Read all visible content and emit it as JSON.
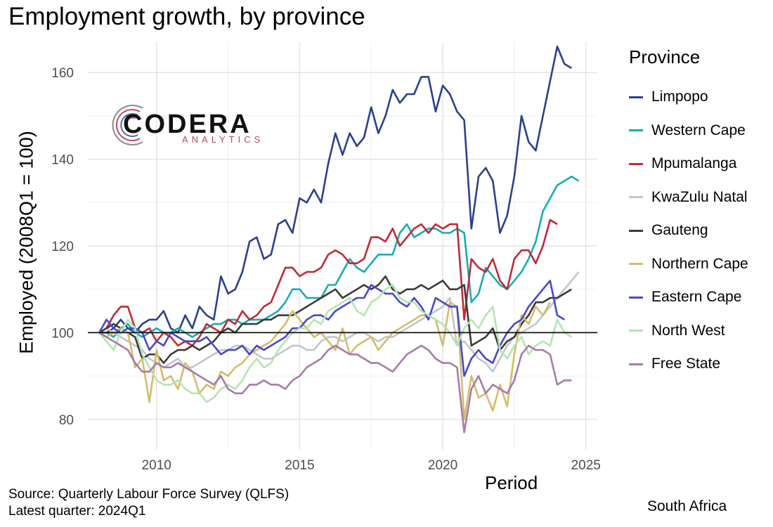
{
  "header": {
    "title": "Employment growth, by province"
  },
  "logo": {
    "main": "CODERA",
    "sub": "ANALYTICS",
    "icon": "codera-logo-icon"
  },
  "footer": {
    "source": "Source: Quarterly Labour Force Survey (QLFS)",
    "latest": "Latest quarter: 2024Q1",
    "country": "South Africa"
  },
  "legend": {
    "title": "Province",
    "placement": "right"
  },
  "chart_data": {
    "type": "line",
    "title": "Employment growth, by province",
    "xlabel": "Period",
    "ylabel": "Employed (2008Q1 = 100)",
    "xlim": [
      2007.6,
      2025.4
    ],
    "ylim": [
      73,
      167
    ],
    "xticks": [
      2010,
      2015,
      2020,
      2025
    ],
    "yticks": [
      80,
      100,
      120,
      140,
      160
    ],
    "reference_line": 100,
    "grid": true,
    "x_start": 2008.0,
    "x_step": 0.25,
    "series": [
      {
        "name": "Limpopo",
        "color": "#2a3f8f",
        "values": [
          100,
          100,
          101,
          103,
          101,
          100,
          102,
          103,
          103,
          105,
          101,
          100,
          104,
          101,
          106,
          104,
          103,
          113,
          109,
          110,
          114,
          121,
          122,
          117,
          118,
          125,
          126,
          123,
          131,
          130,
          133,
          130,
          139,
          146,
          141,
          146,
          143,
          145,
          152,
          146,
          150,
          156,
          153,
          155,
          155,
          159,
          159,
          151,
          157,
          155,
          151,
          149,
          124,
          136,
          138,
          135,
          123,
          127,
          136,
          150,
          144,
          142,
          150,
          158,
          166,
          162,
          161
        ]
      },
      {
        "name": "Western Cape",
        "color": "#17adb0",
        "values": [
          100,
          100,
          99,
          101,
          102,
          100,
          99,
          100,
          101,
          100,
          100,
          101,
          100,
          99,
          100,
          101,
          102,
          102,
          103,
          103,
          102,
          103,
          103,
          103,
          104,
          105,
          107,
          110,
          110,
          108,
          108,
          108,
          111,
          111,
          114,
          117,
          115,
          114,
          116,
          118,
          118,
          118,
          123,
          125,
          122,
          123,
          124,
          124,
          123,
          123,
          124,
          123,
          107,
          109,
          115,
          113,
          111,
          110,
          112,
          114,
          117,
          121,
          128,
          131,
          134,
          135,
          136,
          135
        ]
      },
      {
        "name": "Mpumalanga",
        "color": "#bf2a36",
        "values": [
          100,
          101,
          104,
          106,
          106,
          101,
          100,
          101,
          98,
          100,
          99,
          97,
          98,
          97,
          99,
          102,
          101,
          100,
          103,
          102,
          105,
          103,
          104,
          106,
          107,
          111,
          115,
          115,
          113,
          114,
          114,
          115,
          118,
          119,
          118,
          116,
          116,
          117,
          122,
          122,
          121,
          124,
          120,
          122,
          124,
          125,
          123,
          125,
          124,
          125,
          125,
          103,
          117,
          115,
          114,
          117,
          112,
          110,
          117,
          119,
          119,
          116,
          120,
          126,
          125
        ]
      },
      {
        "name": "KwaZulu Natal",
        "color": "#c2c5cc",
        "values": [
          100,
          101,
          100,
          99,
          98,
          97,
          96,
          94,
          93,
          92,
          93,
          94,
          92,
          92,
          93,
          94,
          95,
          96,
          96,
          97,
          97,
          96,
          95,
          94,
          94,
          95,
          96,
          97,
          97,
          96,
          96,
          98,
          99,
          99,
          98,
          99,
          100,
          100,
          99,
          98,
          99,
          99,
          100,
          101,
          102,
          103,
          104,
          105,
          106,
          108,
          97,
          98,
          96,
          94,
          93,
          91,
          94,
          97,
          99,
          100,
          101,
          102,
          104,
          106,
          108,
          110,
          112,
          114
        ]
      },
      {
        "name": "Gauteng",
        "color": "#3a3a3a",
        "values": [
          100,
          101,
          102,
          101,
          100,
          99,
          94,
          95,
          95,
          93,
          95,
          96,
          96,
          97,
          96,
          97,
          98,
          100,
          101,
          100,
          102,
          102,
          102,
          103,
          103,
          104,
          104,
          104,
          105,
          106,
          107,
          108,
          109,
          110,
          108,
          109,
          110,
          111,
          110,
          111,
          113,
          110,
          109,
          110,
          110,
          111,
          110,
          111,
          112,
          110,
          110,
          111,
          97,
          98,
          99,
          101,
          96,
          98,
          99,
          102,
          104,
          107,
          107,
          108,
          108,
          109,
          110
        ]
      },
      {
        "name": "Northern Cape",
        "color": "#d4bc6c",
        "values": [
          100,
          99,
          100,
          101,
          100,
          92,
          94,
          84,
          96,
          89,
          90,
          87,
          93,
          91,
          86,
          88,
          87,
          91,
          90,
          92,
          93,
          95,
          96,
          97,
          98,
          100,
          102,
          105,
          103,
          101,
          99,
          100,
          98,
          96,
          101,
          95,
          97,
          98,
          99,
          96,
          98,
          100,
          101,
          102,
          103,
          104,
          104,
          103,
          97,
          107,
          106,
          80,
          90,
          85,
          86,
          82,
          88,
          83,
          95,
          104,
          102,
          106,
          104,
          107
        ]
      },
      {
        "name": "Eastern Cape",
        "color": "#4848c8",
        "values": [
          100,
          103,
          101,
          100,
          101,
          101,
          100,
          96,
          98,
          97,
          100,
          99,
          98,
          98,
          98,
          99,
          97,
          95,
          96,
          96,
          97,
          95,
          97,
          96,
          97,
          98,
          99,
          101,
          101,
          103,
          104,
          104,
          103,
          105,
          106,
          107,
          108,
          108,
          111,
          110,
          109,
          109,
          107,
          106,
          108,
          106,
          103,
          108,
          107,
          106,
          106,
          90,
          94,
          96,
          94,
          93,
          97,
          100,
          102,
          103,
          106,
          108,
          110,
          112,
          104,
          103
        ]
      },
      {
        "name": "North West",
        "color": "#b3e6b0",
        "values": [
          100,
          98,
          96,
          100,
          103,
          101,
          95,
          92,
          89,
          88,
          88,
          89,
          87,
          86,
          86,
          84,
          85,
          87,
          88,
          87,
          89,
          92,
          94,
          92,
          93,
          96,
          98,
          100,
          101,
          101,
          103,
          102,
          105,
          106,
          107,
          108,
          105,
          104,
          107,
          108,
          110,
          111,
          108,
          107,
          107,
          105,
          104,
          103,
          102,
          100,
          97,
          101,
          103,
          101,
          104,
          106,
          96,
          94,
          97,
          99,
          95,
          97,
          98,
          97,
          103,
          100,
          99
        ]
      },
      {
        "name": "Free State",
        "color": "#a87ba8",
        "values": [
          100,
          99,
          98,
          97,
          96,
          93,
          91,
          91,
          93,
          92,
          92,
          93,
          92,
          91,
          90,
          89,
          88,
          90,
          87,
          86,
          86,
          88,
          88,
          89,
          88,
          88,
          87,
          89,
          90,
          92,
          93,
          94,
          96,
          97,
          96,
          95,
          95,
          94,
          93,
          93,
          92,
          91,
          93,
          95,
          96,
          97,
          96,
          94,
          93,
          93,
          92,
          77,
          87,
          90,
          86,
          88,
          87,
          86,
          89,
          95,
          97,
          96,
          96,
          95,
          88,
          89,
          89
        ]
      }
    ]
  }
}
